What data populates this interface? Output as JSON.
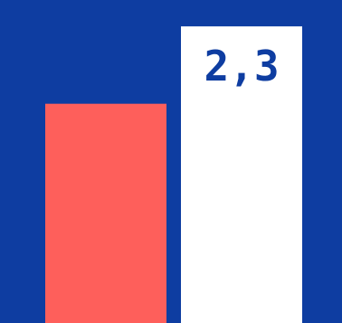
{
  "colors": {
    "background": "#0e3da1",
    "bar_primary": "#fe5f5b",
    "bar_secondary": "#ffffff",
    "label": "#0e3da1"
  },
  "chart_data": {
    "type": "bar",
    "categories": [
      "",
      ""
    ],
    "values": [
      1.7,
      2.3
    ],
    "data_labels": [
      "",
      "2,3"
    ],
    "bar_colors": [
      "#fe5f5b",
      "#ffffff"
    ],
    "ylim": [
      0,
      2.6
    ],
    "title": "",
    "xlabel": "",
    "ylabel": "",
    "grid": false
  }
}
